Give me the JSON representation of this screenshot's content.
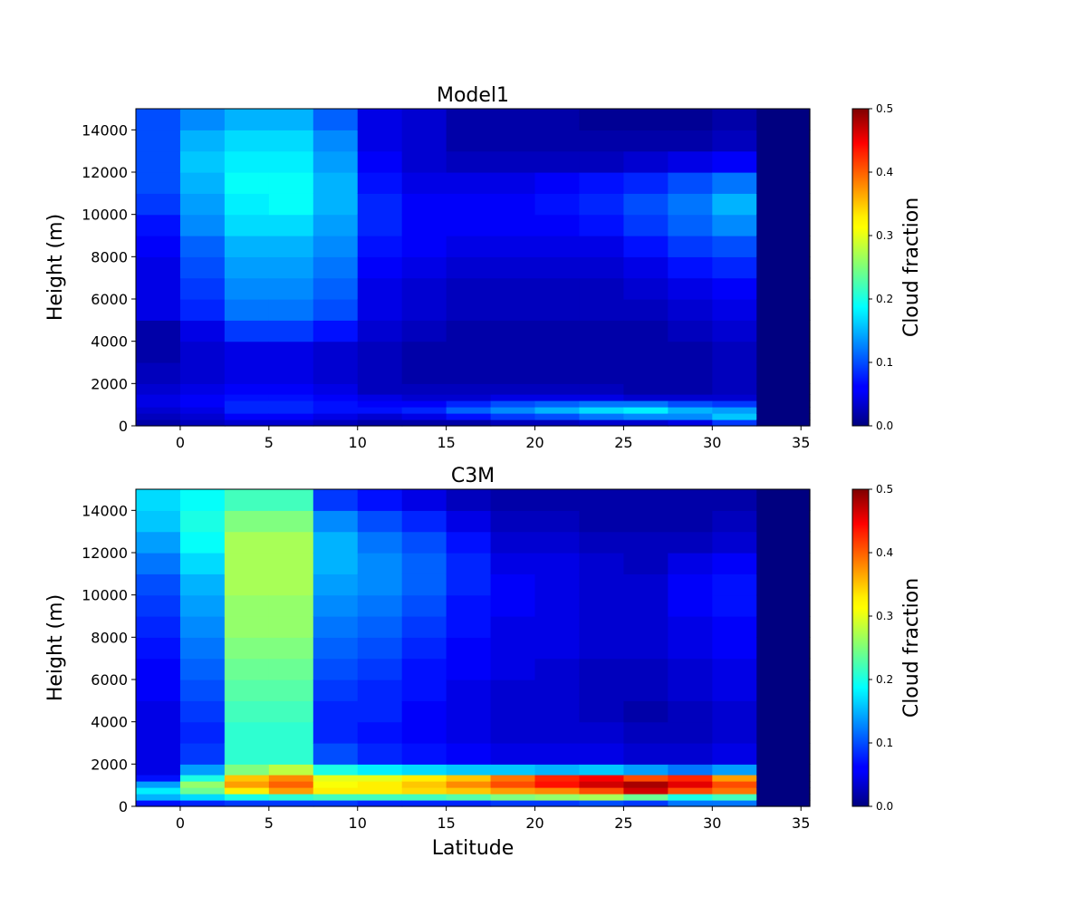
{
  "colormap": "jet",
  "chart_data": [
    {
      "type": "heatmap",
      "title": "Model1",
      "xlabel": "",
      "ylabel": "Height (m)",
      "xlim": [
        -2.5,
        35.5
      ],
      "ylim": [
        0,
        15000
      ],
      "xticks": [
        0,
        5,
        10,
        15,
        20,
        25,
        30,
        35
      ],
      "yticks": [
        0,
        2000,
        4000,
        6000,
        8000,
        10000,
        12000,
        14000
      ],
      "colorbar": {
        "label": "Cloud fraction",
        "range": [
          0,
          0.5
        ],
        "ticks": [
          0.0,
          0.1,
          0.2,
          0.3,
          0.4,
          0.5
        ]
      },
      "lat_edges": [
        -2.5,
        0.0,
        2.5,
        5.0,
        7.5,
        10.0,
        12.5,
        15.0,
        17.5,
        20.0,
        22.5,
        25.0,
        27.5,
        30.0,
        32.5,
        35.5
      ],
      "height_levels": [
        0,
        300,
        600,
        900,
        1200,
        1500,
        2000,
        3000,
        4000,
        5000,
        6000,
        7000,
        8000,
        9000,
        10000,
        11000,
        12000,
        13000,
        14000,
        15000
      ],
      "columns": [
        [
          0.02,
          0.03,
          0.04,
          0.05,
          0.05,
          0.04,
          0.03,
          0.02,
          0.02,
          0.05,
          0.05,
          0.05,
          0.06,
          0.07,
          0.09,
          0.1,
          0.1,
          0.1,
          0.1
        ],
        [
          0.03,
          0.04,
          0.05,
          0.06,
          0.06,
          0.05,
          0.04,
          0.04,
          0.05,
          0.08,
          0.09,
          0.1,
          0.11,
          0.13,
          0.14,
          0.15,
          0.16,
          0.15,
          0.13
        ],
        [
          0.04,
          0.06,
          0.08,
          0.08,
          0.07,
          0.06,
          0.05,
          0.05,
          0.09,
          0.12,
          0.13,
          0.14,
          0.15,
          0.17,
          0.18,
          0.19,
          0.18,
          0.17,
          0.15
        ],
        [
          0.04,
          0.06,
          0.08,
          0.08,
          0.07,
          0.06,
          0.05,
          0.05,
          0.09,
          0.12,
          0.13,
          0.14,
          0.15,
          0.17,
          0.19,
          0.19,
          0.18,
          0.17,
          0.15
        ],
        [
          0.03,
          0.05,
          0.07,
          0.07,
          0.06,
          0.05,
          0.04,
          0.04,
          0.07,
          0.1,
          0.11,
          0.12,
          0.13,
          0.14,
          0.15,
          0.15,
          0.14,
          0.13,
          0.11
        ],
        [
          0.02,
          0.04,
          0.07,
          0.06,
          0.05,
          0.03,
          0.03,
          0.03,
          0.04,
          0.05,
          0.05,
          0.06,
          0.07,
          0.08,
          0.08,
          0.07,
          0.06,
          0.05,
          0.05
        ],
        [
          0.02,
          0.05,
          0.08,
          0.06,
          0.04,
          0.03,
          0.02,
          0.02,
          0.03,
          0.04,
          0.04,
          0.05,
          0.06,
          0.06,
          0.06,
          0.05,
          0.04,
          0.04,
          0.04
        ],
        [
          0.02,
          0.07,
          0.11,
          0.08,
          0.04,
          0.03,
          0.02,
          0.02,
          0.02,
          0.03,
          0.03,
          0.04,
          0.05,
          0.06,
          0.06,
          0.05,
          0.03,
          0.02,
          0.02
        ],
        [
          0.03,
          0.09,
          0.13,
          0.1,
          0.05,
          0.03,
          0.02,
          0.02,
          0.02,
          0.03,
          0.03,
          0.04,
          0.05,
          0.06,
          0.06,
          0.05,
          0.03,
          0.02,
          0.02
        ],
        [
          0.03,
          0.1,
          0.15,
          0.11,
          0.05,
          0.03,
          0.02,
          0.02,
          0.02,
          0.03,
          0.03,
          0.04,
          0.05,
          0.06,
          0.07,
          0.06,
          0.03,
          0.02,
          0.02
        ],
        [
          0.04,
          0.12,
          0.17,
          0.12,
          0.05,
          0.03,
          0.02,
          0.02,
          0.02,
          0.03,
          0.03,
          0.04,
          0.05,
          0.07,
          0.08,
          0.07,
          0.03,
          0.02,
          0.01
        ],
        [
          0.04,
          0.13,
          0.18,
          0.12,
          0.04,
          0.02,
          0.02,
          0.02,
          0.02,
          0.03,
          0.04,
          0.05,
          0.07,
          0.09,
          0.1,
          0.08,
          0.04,
          0.02,
          0.01
        ],
        [
          0.05,
          0.13,
          0.15,
          0.1,
          0.04,
          0.02,
          0.02,
          0.02,
          0.03,
          0.04,
          0.05,
          0.07,
          0.09,
          0.11,
          0.12,
          0.1,
          0.05,
          0.02,
          0.01
        ],
        [
          0.09,
          0.16,
          0.14,
          0.09,
          0.04,
          0.03,
          0.03,
          0.03,
          0.04,
          0.05,
          0.06,
          0.08,
          0.1,
          0.13,
          0.15,
          0.12,
          0.06,
          0.03,
          0.02
        ],
        [
          0.0,
          0.0,
          0.0,
          0.0,
          0.0,
          0.0,
          0.0,
          0.0,
          0.0,
          0.0,
          0.0,
          0.0,
          0.0,
          0.0,
          0.0,
          0.0,
          0.0,
          0.0,
          0.0
        ]
      ]
    },
    {
      "type": "heatmap",
      "title": "C3M",
      "xlabel": "Latitude",
      "ylabel": "Height (m)",
      "xlim": [
        -2.5,
        35.5
      ],
      "ylim": [
        0,
        15000
      ],
      "xticks": [
        0,
        5,
        10,
        15,
        20,
        25,
        30,
        35
      ],
      "yticks": [
        0,
        2000,
        4000,
        6000,
        8000,
        10000,
        12000,
        14000
      ],
      "colorbar": {
        "label": "Cloud fraction",
        "range": [
          0,
          0.5
        ],
        "ticks": [
          0.0,
          0.1,
          0.2,
          0.3,
          0.4,
          0.5
        ]
      },
      "lat_edges": [
        -2.5,
        0.0,
        2.5,
        5.0,
        7.5,
        10.0,
        12.5,
        15.0,
        17.5,
        20.0,
        22.5,
        25.0,
        27.5,
        30.0,
        32.5,
        35.5
      ],
      "height_levels": [
        0,
        300,
        600,
        900,
        1200,
        1500,
        2000,
        3000,
        4000,
        5000,
        6000,
        7000,
        8000,
        9000,
        10000,
        11000,
        12000,
        13000,
        14000,
        15000
      ],
      "columns": [
        [
          0.07,
          0.15,
          0.18,
          0.14,
          0.07,
          0.05,
          0.05,
          0.05,
          0.05,
          0.06,
          0.06,
          0.07,
          0.08,
          0.09,
          0.1,
          0.12,
          0.14,
          0.16,
          0.17
        ],
        [
          0.08,
          0.17,
          0.24,
          0.26,
          0.2,
          0.14,
          0.09,
          0.08,
          0.09,
          0.1,
          0.11,
          0.12,
          0.13,
          0.14,
          0.15,
          0.17,
          0.19,
          0.2,
          0.19
        ],
        [
          0.09,
          0.2,
          0.32,
          0.36,
          0.34,
          0.25,
          0.21,
          0.21,
          0.22,
          0.23,
          0.24,
          0.25,
          0.26,
          0.26,
          0.27,
          0.27,
          0.27,
          0.25,
          0.22
        ],
        [
          0.09,
          0.21,
          0.36,
          0.39,
          0.37,
          0.28,
          0.21,
          0.21,
          0.22,
          0.23,
          0.24,
          0.25,
          0.26,
          0.26,
          0.27,
          0.27,
          0.27,
          0.25,
          0.22
        ],
        [
          0.09,
          0.22,
          0.32,
          0.31,
          0.3,
          0.2,
          0.1,
          0.08,
          0.08,
          0.09,
          0.1,
          0.11,
          0.12,
          0.13,
          0.14,
          0.15,
          0.15,
          0.13,
          0.09
        ],
        [
          0.08,
          0.22,
          0.32,
          0.32,
          0.3,
          0.18,
          0.08,
          0.07,
          0.08,
          0.08,
          0.09,
          0.1,
          0.11,
          0.12,
          0.13,
          0.13,
          0.12,
          0.1,
          0.07
        ],
        [
          0.08,
          0.22,
          0.33,
          0.34,
          0.32,
          0.17,
          0.07,
          0.06,
          0.06,
          0.07,
          0.07,
          0.08,
          0.09,
          0.1,
          0.11,
          0.11,
          0.1,
          0.08,
          0.05
        ],
        [
          0.08,
          0.23,
          0.34,
          0.37,
          0.34,
          0.16,
          0.06,
          0.05,
          0.05,
          0.05,
          0.06,
          0.06,
          0.07,
          0.07,
          0.08,
          0.08,
          0.07,
          0.05,
          0.03
        ],
        [
          0.09,
          0.25,
          0.36,
          0.4,
          0.38,
          0.16,
          0.05,
          0.04,
          0.04,
          0.04,
          0.05,
          0.05,
          0.05,
          0.06,
          0.06,
          0.05,
          0.04,
          0.03,
          0.02
        ],
        [
          0.09,
          0.26,
          0.37,
          0.43,
          0.42,
          0.15,
          0.05,
          0.04,
          0.04,
          0.04,
          0.04,
          0.05,
          0.05,
          0.05,
          0.05,
          0.05,
          0.04,
          0.03,
          0.02
        ],
        [
          0.1,
          0.27,
          0.4,
          0.46,
          0.44,
          0.16,
          0.05,
          0.04,
          0.03,
          0.03,
          0.03,
          0.04,
          0.04,
          0.04,
          0.04,
          0.04,
          0.03,
          0.02,
          0.02
        ],
        [
          0.09,
          0.24,
          0.46,
          0.48,
          0.4,
          0.14,
          0.04,
          0.03,
          0.02,
          0.03,
          0.03,
          0.04,
          0.04,
          0.04,
          0.04,
          0.03,
          0.03,
          0.02,
          0.02
        ],
        [
          0.12,
          0.2,
          0.4,
          0.45,
          0.42,
          0.12,
          0.04,
          0.03,
          0.03,
          0.04,
          0.04,
          0.05,
          0.05,
          0.06,
          0.06,
          0.05,
          0.03,
          0.02,
          0.02
        ],
        [
          0.12,
          0.22,
          0.38,
          0.4,
          0.36,
          0.14,
          0.05,
          0.04,
          0.04,
          0.05,
          0.05,
          0.06,
          0.06,
          0.07,
          0.07,
          0.06,
          0.04,
          0.03,
          0.02
        ],
        [
          0.0,
          0.0,
          0.0,
          0.0,
          0.0,
          0.0,
          0.0,
          0.0,
          0.0,
          0.0,
          0.0,
          0.0,
          0.0,
          0.0,
          0.0,
          0.0,
          0.0,
          0.0,
          0.0
        ]
      ]
    }
  ]
}
